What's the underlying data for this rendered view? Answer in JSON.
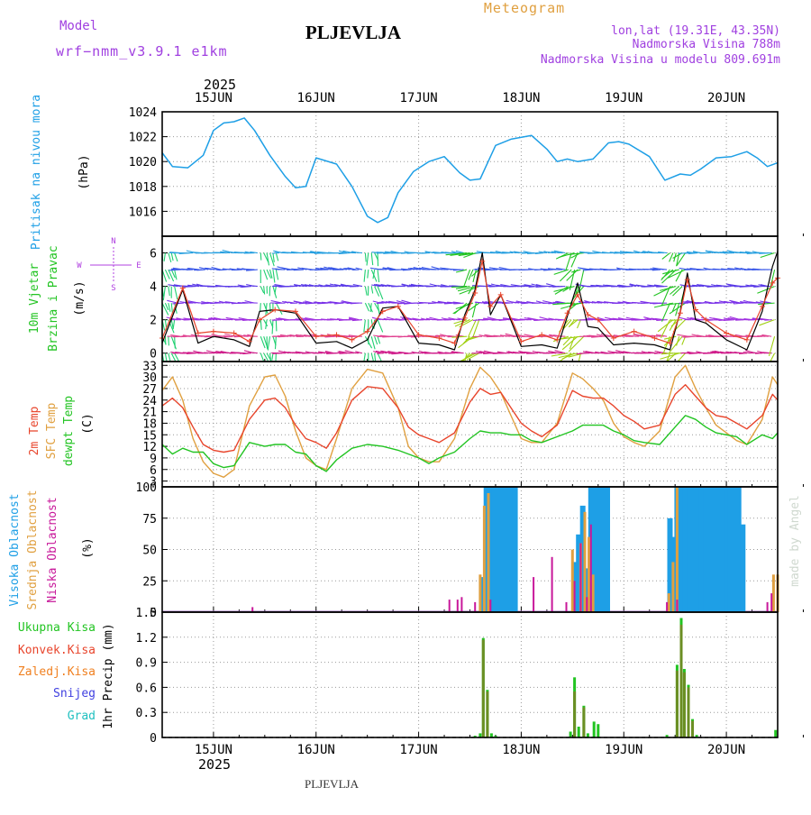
{
  "header": {
    "model_label": "Model",
    "model_name": "wrf−nmm_v3.9.1  e1km",
    "title": "PLJEVLJA",
    "product": "Meteogram",
    "lonlat": "lon,lat (19.31E, 43.35N)",
    "altitude": "Nadmorska Visina 788m",
    "model_altitude": "Nadmorska Visina u modelu 809.691m"
  },
  "footer": {
    "station": "PLJEVLJA",
    "watermark": "made by Angel"
  },
  "time_axis": {
    "year": "2025",
    "days": [
      "15JUN",
      "16JUN",
      "17JUN",
      "18JUN",
      "19JUN",
      "20JUN"
    ],
    "x_range_days": [
      14.5,
      20.5
    ]
  },
  "panel_labels": {
    "pressure": [
      "Pritisak na nivou mora",
      "(hPa)"
    ],
    "wind": [
      "10m Vjetar",
      "Brzina i Pravac",
      "(m/s)"
    ],
    "compass": {
      "n": "N",
      "s": "S",
      "w": "W",
      "e": "E"
    },
    "temp": [
      "2m Temp",
      "SFC Temp",
      "dewpt Temp",
      "(C)"
    ],
    "cloud": [
      "Visoka Oblacnost",
      "Srednja Oblacnost",
      "Niska Oblacnost",
      "(%)"
    ],
    "precip_legend": [
      "Ukupna Kisa",
      "Konvek.Kisa",
      "Zaledj.Kisa",
      "Snijeg",
      "Grad"
    ],
    "precip_unit": "1hr Precip (mm)"
  },
  "colors": {
    "pressure": "#1e9fe6",
    "wind_speed": "#000000",
    "wind_gust": "#e8452c",
    "t2m": "#e8452c",
    "tsfc": "#e0a040",
    "dewpt": "#22c422",
    "high_cloud": "#1e9fe6",
    "mid_cloud": "#e0a040",
    "low_cloud": "#c8189a",
    "total_precip": "#22c422",
    "conv_precip": "#e8452c",
    "frz_precip": "#f08020",
    "snow": "#4040e0",
    "hail": "#20c0c0",
    "purple_text": "#a040e0",
    "orange_text": "#e0a040"
  },
  "chart_data": [
    {
      "type": "line",
      "title": "Pritisak na nivou mora",
      "ylabel": "(hPa)",
      "ylim": [
        1014,
        1024
      ],
      "yticks": [
        1016,
        1018,
        1020,
        1022,
        1024
      ],
      "x": [
        14.5,
        14.6,
        14.75,
        14.9,
        15.0,
        15.1,
        15.2,
        15.3,
        15.4,
        15.55,
        15.7,
        15.8,
        15.9,
        16.0,
        16.2,
        16.35,
        16.5,
        16.6,
        16.7,
        16.8,
        16.95,
        17.1,
        17.25,
        17.4,
        17.5,
        17.6,
        17.65,
        17.75,
        17.9,
        18.1,
        18.25,
        18.35,
        18.45,
        18.55,
        18.7,
        18.85,
        18.95,
        19.05,
        19.25,
        19.4,
        19.55,
        19.65,
        19.75,
        19.9,
        20.05,
        20.2,
        20.3,
        20.4,
        20.5
      ],
      "series": [
        {
          "values": [
            1020.7,
            1019.6,
            1019.5,
            1020.5,
            1022.5,
            1023.1,
            1023.2,
            1023.5,
            1022.5,
            1020.5,
            1018.8,
            1017.9,
            1018.0,
            1020.3,
            1019.8,
            1018.0,
            1015.6,
            1015.1,
            1015.5,
            1017.5,
            1019.2,
            1020.0,
            1020.4,
            1019.1,
            1018.5,
            1018.6,
            1019.5,
            1021.3,
            1021.8,
            1022.1,
            1021.0,
            1020.0,
            1020.2,
            1020.0,
            1020.2,
            1021.5,
            1021.6,
            1021.4,
            1020.4,
            1018.5,
            1019.0,
            1018.9,
            1019.4,
            1020.3,
            1020.4,
            1020.8,
            1020.3,
            1019.6,
            1019.9
          ]
        }
      ]
    },
    {
      "type": "line",
      "title": "10m Vjetar Brzina i Pravac",
      "ylabel": "(m/s)",
      "ylim": [
        -0.5,
        7
      ],
      "yticks": [
        0,
        2,
        4,
        6
      ],
      "x": [
        14.5,
        14.7,
        14.85,
        15.0,
        15.2,
        15.35,
        15.45,
        15.6,
        15.8,
        16.0,
        16.2,
        16.35,
        16.5,
        16.65,
        16.8,
        17.0,
        17.2,
        17.35,
        17.45,
        17.55,
        17.62,
        17.7,
        17.8,
        18.0,
        18.2,
        18.35,
        18.45,
        18.55,
        18.65,
        18.75,
        18.9,
        19.1,
        19.3,
        19.45,
        19.55,
        19.62,
        19.7,
        19.8,
        20.0,
        20.2,
        20.35,
        20.45,
        20.5
      ],
      "series": [
        {
          "values": [
            0.6,
            3.8,
            0.6,
            1.0,
            0.8,
            0.4,
            2.5,
            2.6,
            2.4,
            0.6,
            0.7,
            0.3,
            0.8,
            2.7,
            2.8,
            0.6,
            0.5,
            0.2,
            2.3,
            3.8,
            6.0,
            2.3,
            3.5,
            0.4,
            0.5,
            0.3,
            2.2,
            4.2,
            1.6,
            1.5,
            0.5,
            0.6,
            0.5,
            0.2,
            2.5,
            4.8,
            2.0,
            1.8,
            0.8,
            0.2,
            2.5,
            5.2,
            6.1
          ]
        },
        {
          "values": [
            0.9,
            3.9,
            1.2,
            1.3,
            1.2,
            0.7,
            2.0,
            2.6,
            2.5,
            1.0,
            1.1,
            0.8,
            1.3,
            2.5,
            2.8,
            1.1,
            0.9,
            0.6,
            2.1,
            3.6,
            5.5,
            2.8,
            3.5,
            0.7,
            1.1,
            0.8,
            2.4,
            3.5,
            2.3,
            2.0,
            0.9,
            1.3,
            0.9,
            0.6,
            2.4,
            4.4,
            2.6,
            2.0,
            1.2,
            0.8,
            2.8,
            4.2,
            4.5
          ]
        }
      ],
      "wind_barbs": {
        "levels": [
          0,
          1,
          2,
          3,
          4,
          5,
          6
        ],
        "level_colors": [
          "#d01c8b",
          "#e04090",
          "#a030e0",
          "#7a30e8",
          "#5a3ae8",
          "#3a58e8",
          "#28a0e0"
        ]
      }
    },
    {
      "type": "line",
      "title": "2m Temp / SFC Temp / dewpt Temp",
      "ylabel": "(C)",
      "ylim": [
        1.5,
        34
      ],
      "yticks": [
        3,
        6,
        9,
        12,
        15,
        18,
        21,
        24,
        27,
        30,
        33
      ],
      "x": [
        14.5,
        14.6,
        14.7,
        14.8,
        14.9,
        15.0,
        15.1,
        15.2,
        15.35,
        15.5,
        15.6,
        15.7,
        15.8,
        15.9,
        16.0,
        16.1,
        16.2,
        16.35,
        16.5,
        16.65,
        16.8,
        16.9,
        17.0,
        17.1,
        17.2,
        17.35,
        17.5,
        17.6,
        17.7,
        17.8,
        17.9,
        18.0,
        18.1,
        18.2,
        18.35,
        18.5,
        18.6,
        18.7,
        18.8,
        18.9,
        19.0,
        19.1,
        19.2,
        19.35,
        19.5,
        19.6,
        19.7,
        19.8,
        19.9,
        20.0,
        20.1,
        20.2,
        20.35,
        20.45,
        20.5
      ],
      "series": [
        {
          "name": "2m Temp",
          "values": [
            22.5,
            24.5,
            22.0,
            17.0,
            12.5,
            11.0,
            10.5,
            11.0,
            19.0,
            24.0,
            24.5,
            22.0,
            17.5,
            14.0,
            13.0,
            11.5,
            15.5,
            24.0,
            27.5,
            27.0,
            22.0,
            17.0,
            15.0,
            14.0,
            13.0,
            15.5,
            23.5,
            27.0,
            25.5,
            26.0,
            22.0,
            18.0,
            16.0,
            14.5,
            17.5,
            26.5,
            25.0,
            24.5,
            24.5,
            22.5,
            20.0,
            18.5,
            16.5,
            17.5,
            25.5,
            28.0,
            25.0,
            22.0,
            20.0,
            19.5,
            18.0,
            16.5,
            20.0,
            25.5,
            24.0
          ]
        },
        {
          "name": "SFC Temp",
          "values": [
            26.5,
            30.0,
            24.0,
            14.0,
            8.0,
            5.0,
            4.0,
            6.0,
            22.5,
            30.0,
            30.5,
            25.0,
            16.0,
            9.0,
            7.0,
            6.0,
            14.0,
            27.0,
            32.0,
            31.0,
            22.0,
            12.0,
            9.0,
            8.0,
            8.0,
            14.0,
            27.0,
            32.5,
            30.0,
            26.0,
            20.0,
            14.0,
            13.0,
            13.0,
            18.0,
            31.0,
            29.5,
            27.0,
            24.0,
            18.0,
            14.5,
            13.0,
            12.0,
            16.0,
            30.0,
            33.0,
            27.0,
            22.0,
            17.5,
            15.5,
            13.5,
            12.5,
            19.0,
            30.0,
            28.0
          ]
        },
        {
          "name": "dewpt Temp",
          "values": [
            12.5,
            10.0,
            11.5,
            10.5,
            10.5,
            7.5,
            6.5,
            7.0,
            13.0,
            12.0,
            12.5,
            12.5,
            10.5,
            10.0,
            7.0,
            5.5,
            8.5,
            11.5,
            12.5,
            12.0,
            11.0,
            10.0,
            9.0,
            7.5,
            9.0,
            10.5,
            14.0,
            16.0,
            15.5,
            15.5,
            15.0,
            15.0,
            13.5,
            13.0,
            14.5,
            16.0,
            17.5,
            17.5,
            17.5,
            16.0,
            15.0,
            13.5,
            13.0,
            12.5,
            17.0,
            20.0,
            19.0,
            17.0,
            15.5,
            15.0,
            14.5,
            12.5,
            15.0,
            14.0,
            15.5
          ]
        }
      ]
    },
    {
      "type": "bar",
      "title": "Visoka / Srednja / Niska Oblacnost",
      "ylabel": "(%)",
      "ylim": [
        0,
        100
      ],
      "yticks": [
        0,
        25,
        50,
        75,
        100
      ],
      "series": [
        {
          "name": "Visoka Oblacnost",
          "x": [
            17.62,
            17.66,
            17.7,
            17.74,
            17.78,
            17.82,
            17.86,
            17.9,
            17.94,
            18.52,
            18.56,
            18.6,
            18.64,
            18.68,
            18.72,
            18.76,
            18.8,
            18.84,
            19.45,
            19.49,
            19.52,
            19.56,
            19.6,
            19.64,
            19.68,
            19.72,
            19.76,
            19.8,
            19.84,
            19.88,
            19.92,
            19.96,
            20.0,
            20.04,
            20.08,
            20.12,
            20.16
          ],
          "values": [
            28,
            100,
            100,
            100,
            100,
            100,
            100,
            100,
            100,
            40,
            62,
            85,
            35,
            100,
            100,
            100,
            100,
            100,
            75,
            60,
            100,
            100,
            100,
            100,
            100,
            100,
            100,
            100,
            100,
            100,
            100,
            100,
            100,
            100,
            100,
            100,
            70
          ]
        },
        {
          "name": "Srednja Oblacnost",
          "x": [
            17.6,
            17.64,
            17.68,
            18.5,
            18.58,
            18.62,
            18.66,
            18.7,
            19.44,
            19.48,
            19.52,
            20.46,
            20.5
          ],
          "values": [
            30,
            85,
            95,
            50,
            55,
            80,
            60,
            30,
            15,
            40,
            100,
            30,
            30
          ]
        },
        {
          "name": "Niska Oblacnost",
          "x": [
            15.38,
            17.3,
            17.38,
            17.42,
            17.55,
            17.7,
            18.12,
            18.3,
            18.44,
            18.52,
            18.58,
            18.64,
            18.68,
            19.42,
            19.52,
            20.4,
            20.44
          ],
          "values": [
            4,
            10,
            10,
            12,
            8,
            10,
            28,
            44,
            8,
            25,
            55,
            12,
            70,
            8,
            10,
            8,
            15
          ]
        }
      ]
    },
    {
      "type": "bar",
      "title": "1hr Precip",
      "ylabel": "1hr Precip (mm)",
      "ylim": [
        0,
        1.5
      ],
      "yticks": [
        0,
        0.3,
        0.6,
        0.9,
        1.2,
        1.5
      ],
      "series": [
        {
          "name": "Ukupna Kisa",
          "x": [
            17.55,
            17.6,
            17.63,
            17.67,
            17.71,
            17.75,
            18.48,
            18.52,
            18.56,
            18.61,
            18.65,
            18.71,
            18.75,
            19.42,
            19.52,
            19.56,
            19.59,
            19.63,
            19.67,
            19.71,
            20.48
          ],
          "values": [
            0.02,
            0.05,
            1.19,
            0.57,
            0.05,
            0.02,
            0.07,
            0.72,
            0.13,
            0.38,
            0.05,
            0.19,
            0.16,
            0.03,
            0.87,
            1.43,
            0.82,
            0.63,
            0.22,
            0.03,
            0.09
          ]
        },
        {
          "name": "Konvek.Kisa",
          "x": [
            17.63,
            17.67,
            18.52,
            18.61,
            19.52,
            19.56,
            19.59,
            19.63,
            19.67
          ],
          "values": [
            1.17,
            0.55,
            0.55,
            0.36,
            0.8,
            1.35,
            0.78,
            0.6,
            0.2
          ]
        }
      ]
    }
  ]
}
